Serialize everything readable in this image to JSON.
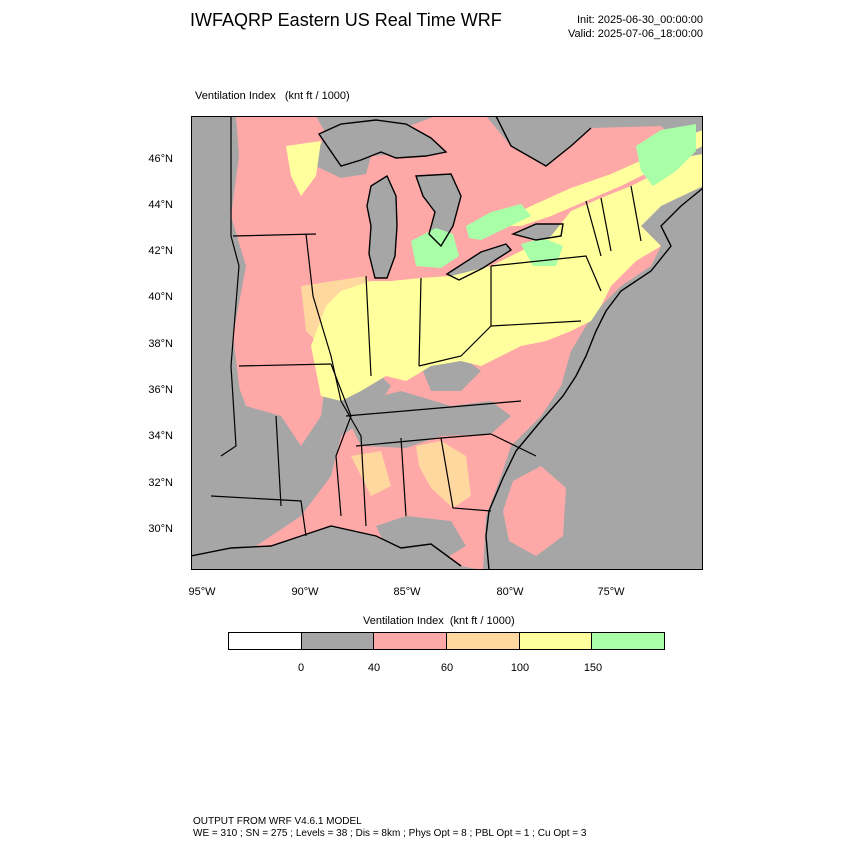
{
  "header": {
    "title": "IWFAQRP Eastern US Real Time WRF",
    "init": "Init: 2025-06-30_00:00:00",
    "valid": "Valid: 2025-07-06_18:00:00"
  },
  "panel": {
    "label": "Ventilation Index   (knt ft / 1000)"
  },
  "map": {
    "lat_labels": [
      "46°N",
      "44°N",
      "42°N",
      "40°N",
      "38°N",
      "36°N",
      "34°N",
      "32°N",
      "30°N"
    ],
    "lon_labels": [
      "95°W",
      "90°W",
      "85°W",
      "80°W",
      "75°W"
    ],
    "colors": {
      "water": "#a6a6a6",
      "gray_class": "#a6a6a6",
      "red_class": "#ffa8a8",
      "orange_class": "#ffd8a0",
      "yellow_class": "#ffff9e",
      "green_class": "#a8ffa8"
    }
  },
  "colorbar": {
    "label": "Ventilation Index  (knt ft / 1000)",
    "colors": [
      "#ffffff",
      "#a6a6a6",
      "#ffa8a8",
      "#ffd8a0",
      "#ffff9e",
      "#a8ffa8"
    ],
    "ticks": [
      "0",
      "40",
      "60",
      "100",
      "150"
    ]
  },
  "footer": {
    "line1": "OUTPUT FROM WRF V4.6.1 MODEL",
    "line2": "WE = 310 ; SN = 275 ; Levels = 38 ; Dis = 8km ; Phys Opt = 8 ; PBL Opt = 1 ; Cu Opt = 3"
  }
}
